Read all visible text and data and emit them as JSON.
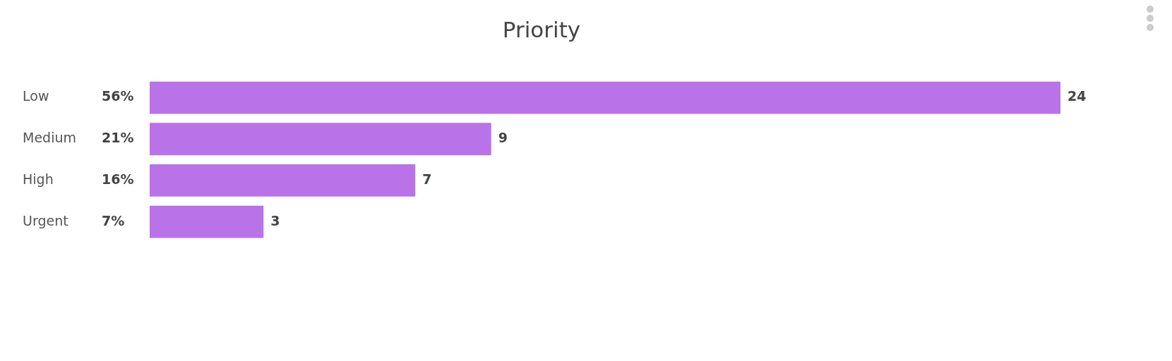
{
  "chart_data": {
    "type": "bar",
    "title": "Priority",
    "orientation": "horizontal",
    "categories": [
      "Low",
      "Medium",
      "High",
      "Urgent"
    ],
    "values": [
      24,
      9,
      7,
      3
    ],
    "color": "#b972e8",
    "data_labels": true,
    "grid": false,
    "legend": false,
    "annotations": [
      "56%",
      "21%",
      "16%",
      "7%"
    ]
  }
}
